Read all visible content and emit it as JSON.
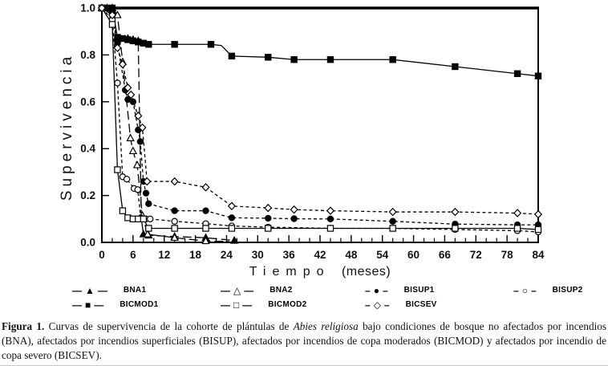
{
  "figure": {
    "caption_segments": [
      {
        "text": "Figura 1.",
        "style": "bold"
      },
      {
        "text": " Curvas de supervivencia de la cohorte de plántulas de ",
        "style": "normal"
      },
      {
        "text": "Abies religiosa",
        "style": "italic"
      },
      {
        "text": " bajo condiciones de bosque no afectados por incendios (BNA), afectados por incendios superficiales (BISUP), afectados por incendios de copa moderados (BICMOD) y afectados por incendio de copa severo (BICSEV).",
        "style": "normal"
      }
    ]
  },
  "axes": {
    "ylabel": "Supervivencia",
    "xlabel_word": "Tiempo",
    "xlabel_unit": "(meses)"
  },
  "legend": {
    "rows": [
      [
        {
          "dash": "—",
          "marker": "▲",
          "marker_name": "filled-triangle-icon",
          "label": "BNA1"
        },
        {
          "dash": "—",
          "marker": "△",
          "marker_name": "open-triangle-icon",
          "label": "BNA2"
        },
        {
          "dash": "–",
          "marker": "●",
          "marker_name": "filled-circle-icon",
          "label": "BISUP1"
        },
        {
          "dash": "–",
          "marker": "○",
          "marker_name": "open-circle-icon",
          "label": "BISUP2"
        }
      ],
      [
        {
          "dash": "—",
          "marker": "■",
          "marker_name": "filled-square-icon",
          "label": "BICMOD1"
        },
        {
          "dash": "—",
          "marker": "□",
          "marker_name": "open-square-icon",
          "label": "BICMOD2"
        },
        {
          "dash": "–",
          "marker": "◇",
          "marker_name": "open-diamond-icon",
          "label": "BICSEV"
        }
      ]
    ]
  },
  "chart_data": {
    "type": "line",
    "title": "",
    "xlabel": "Tiempo (meses)",
    "ylabel": "Supervivencia",
    "xlim": [
      0,
      84
    ],
    "ylim": [
      0,
      1.0
    ],
    "x_major_ticks": [
      0,
      6,
      12,
      18,
      24,
      30,
      36,
      42,
      48,
      54,
      60,
      66,
      72,
      78,
      84
    ],
    "x_minor_step": 2,
    "y_ticks": [
      "0.0",
      "0.2",
      "0.4",
      "0.6",
      "0.8",
      "1.0"
    ],
    "grid": false,
    "legend_position": "bottom",
    "frame": "full-box",
    "line_color": "#000000",
    "series": [
      {
        "name": "BNA1",
        "marker": "filled-triangle",
        "line": "longdash",
        "points": [
          [
            0,
            1.0
          ],
          [
            1,
            1.0
          ],
          [
            2,
            1.0
          ],
          [
            3,
            0.87
          ],
          [
            5,
            0.87
          ],
          [
            6,
            0.865
          ],
          [
            7,
            0.86
          ],
          [
            7.6,
            0.1,
            0
          ],
          [
            8,
            0.035
          ],
          [
            9,
            0.03
          ],
          [
            14,
            0.025
          ],
          [
            20,
            0.02
          ],
          [
            25.5,
            0.008
          ]
        ]
      },
      {
        "name": "BNA2",
        "marker": "open-triangle",
        "line": "longdash",
        "points": [
          [
            0,
            1.0
          ],
          [
            1,
            1.0
          ],
          [
            2,
            1.0
          ],
          [
            3,
            0.97
          ],
          [
            4,
            0.77
          ],
          [
            5.5,
            0.445
          ],
          [
            6,
            0.39
          ],
          [
            6.8,
            0.33
          ],
          [
            7.8,
            0.115
          ],
          [
            8.8,
            0.035
          ],
          [
            14,
            0.02
          ],
          [
            20,
            0.006
          ],
          [
            24.5,
            0.004,
            0
          ]
        ]
      },
      {
        "name": "BISUP1",
        "marker": "filled-circle",
        "line": "shortdash",
        "points": [
          [
            0,
            1.0
          ],
          [
            2,
            0.98
          ],
          [
            3,
            0.85
          ],
          [
            4.5,
            0.65
          ],
          [
            5,
            0.61
          ],
          [
            6,
            0.6
          ],
          [
            7,
            0.48
          ],
          [
            7.4,
            0.43
          ],
          [
            8,
            0.26
          ],
          [
            8.5,
            0.21
          ],
          [
            9,
            0.165
          ],
          [
            14,
            0.135
          ],
          [
            20,
            0.135
          ],
          [
            25,
            0.105
          ],
          [
            32,
            0.103
          ],
          [
            37,
            0.101
          ],
          [
            44,
            0.1
          ],
          [
            56,
            0.09
          ],
          [
            68,
            0.078
          ],
          [
            80,
            0.075
          ],
          [
            84,
            0.075
          ]
        ]
      },
      {
        "name": "BISUP2",
        "marker": "open-circle",
        "line": "shortdash",
        "points": [
          [
            0,
            1.0
          ],
          [
            2,
            0.95
          ],
          [
            3,
            0.68
          ],
          [
            4,
            0.28
          ],
          [
            4.8,
            0.27
          ],
          [
            6.2,
            0.23
          ],
          [
            6.9,
            0.225
          ],
          [
            7.5,
            0.105
          ],
          [
            8.5,
            0.1
          ],
          [
            9.3,
            0.1
          ],
          [
            14,
            0.09
          ],
          [
            20,
            0.08
          ],
          [
            25,
            0.07
          ],
          [
            32,
            0.065
          ],
          [
            44,
            0.06
          ],
          [
            56,
            0.06
          ],
          [
            68,
            0.055
          ],
          [
            80,
            0.05
          ],
          [
            84,
            0.045
          ]
        ]
      },
      {
        "name": "BICMOD1",
        "marker": "filled-square",
        "line": "solid",
        "points": [
          [
            0,
            1.0
          ],
          [
            1,
            1.0
          ],
          [
            2,
            1.0
          ],
          [
            3,
            0.875
          ],
          [
            4,
            0.87
          ],
          [
            5,
            0.865
          ],
          [
            6,
            0.86
          ],
          [
            7,
            0.855
          ],
          [
            8,
            0.85
          ],
          [
            9,
            0.845
          ],
          [
            14,
            0.845
          ],
          [
            21,
            0.845
          ],
          [
            23,
            0.84,
            0
          ],
          [
            25,
            0.795
          ],
          [
            32,
            0.79
          ],
          [
            37,
            0.78
          ],
          [
            44,
            0.78
          ],
          [
            56,
            0.78
          ],
          [
            68,
            0.75
          ],
          [
            80,
            0.72
          ],
          [
            84,
            0.71
          ]
        ]
      },
      {
        "name": "BICMOD2",
        "marker": "open-square",
        "line": "solid",
        "points": [
          [
            0,
            1.0
          ],
          [
            2,
            0.93
          ],
          [
            3,
            0.31
          ],
          [
            4,
            0.135
          ],
          [
            5,
            0.105
          ],
          [
            6,
            0.1
          ],
          [
            7,
            0.1
          ],
          [
            8,
            0.1
          ],
          [
            9,
            0.06
          ],
          [
            14,
            0.06
          ],
          [
            20,
            0.06
          ],
          [
            25,
            0.06
          ],
          [
            32,
            0.06
          ],
          [
            44,
            0.06
          ],
          [
            56,
            0.06
          ],
          [
            68,
            0.06
          ],
          [
            80,
            0.06
          ],
          [
            84,
            0.055
          ]
        ]
      },
      {
        "name": "BICSEV",
        "marker": "open-diamond",
        "line": "shortdash",
        "points": [
          [
            0,
            1.0
          ],
          [
            2,
            0.97
          ],
          [
            3,
            0.83
          ],
          [
            4,
            0.76
          ],
          [
            5,
            0.66
          ],
          [
            5.6,
            0.63
          ],
          [
            7,
            0.54
          ],
          [
            7.8,
            0.49
          ],
          [
            8.7,
            0.26
          ],
          [
            14,
            0.26
          ],
          [
            20,
            0.235
          ],
          [
            25,
            0.155
          ],
          [
            32,
            0.147
          ],
          [
            37,
            0.14
          ],
          [
            44,
            0.135
          ],
          [
            56,
            0.13
          ],
          [
            68,
            0.13
          ],
          [
            80,
            0.125
          ],
          [
            84,
            0.12
          ]
        ]
      }
    ]
  }
}
